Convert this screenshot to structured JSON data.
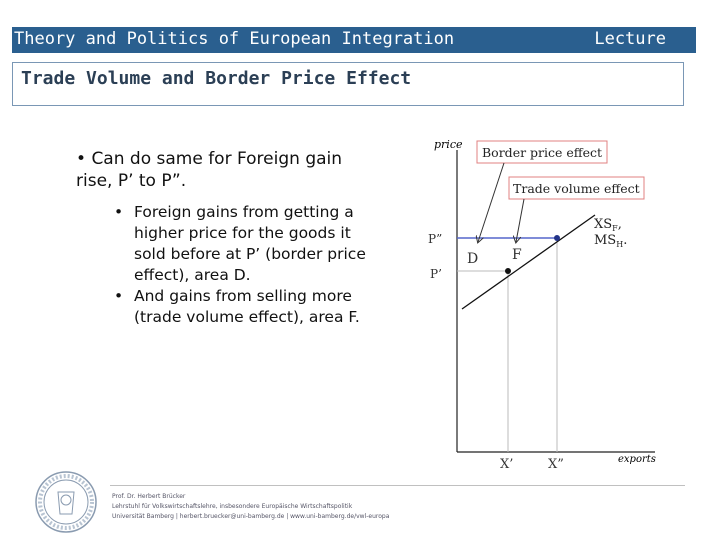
{
  "header": {
    "title": "Theory and Politics of European Integration",
    "lecture": "Lecture"
  },
  "slide": {
    "subtitle": "Trade Volume and Border Price Effect",
    "main_point": "Can do same for Foreign gain rise, P’ to P”.",
    "bullets": [
      "Foreign gains from getting a higher price for the goods it sold before at P’ (border price effect), area D.",
      "And gains from selling more (trade volume effect), area F."
    ]
  },
  "chart_data": {
    "type": "line",
    "ylabel": "price",
    "xlabel": "exports",
    "callouts": [
      "Border price effect",
      "Trade volume effect"
    ],
    "y_ticks": [
      "P”",
      "P’"
    ],
    "x_ticks": [
      "X’",
      "X”"
    ],
    "area_labels": [
      "D",
      "F"
    ],
    "curve_label_1": "XS",
    "curve_label_1_sub": "F",
    "curve_label_2": "MS",
    "curve_label_2_sub": "H",
    "curve_label_suffix": ",",
    "curve_label_suffix_2": "."
  },
  "footer": {
    "line1": "Prof. Dr. Herbert Brücker",
    "line2": "Lehrstuhl für Volkswirtschaftslehre, insbesondere Europäische Wirtschaftspolitik",
    "line3": "Universität Bamberg | herbert.bruecker@uni-bamberg.de | www.uni-bamberg.de/vwl-europa"
  }
}
